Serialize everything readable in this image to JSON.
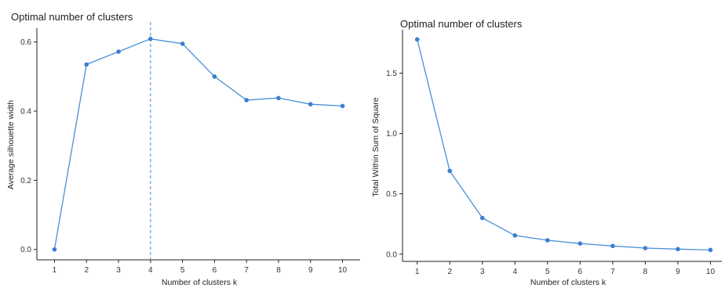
{
  "chart_data": [
    {
      "type": "line",
      "title": "Optimal number of clusters",
      "xlabel": "Number of clusters k",
      "ylabel": "Average silhouette width",
      "x": [
        1,
        2,
        3,
        4,
        5,
        6,
        7,
        8,
        9,
        10
      ],
      "series": [
        {
          "values": [
            0.0,
            0.535,
            0.572,
            0.609,
            0.595,
            0.5,
            0.432,
            0.438,
            0.42,
            0.415
          ]
        }
      ],
      "xticks": [
        "1",
        "2",
        "3",
        "4",
        "5",
        "6",
        "7",
        "8",
        "9",
        "10"
      ],
      "yticks": [
        "0.0",
        "0.2",
        "0.4",
        "0.6"
      ],
      "ylim": [
        -0.03,
        0.64
      ],
      "xlim": [
        0.45,
        10.55
      ],
      "vline_x": 4,
      "grid": false,
      "color": "#3a7fcf"
    },
    {
      "type": "line",
      "title": "Optimal number of clusters",
      "xlabel": "Number of clusters k",
      "ylabel": "Total Within Sum of Square",
      "x": [
        1,
        2,
        3,
        4,
        5,
        6,
        7,
        8,
        9,
        10
      ],
      "series": [
        {
          "values": [
            1.78,
            0.69,
            0.3,
            0.155,
            0.115,
            0.088,
            0.068,
            0.05,
            0.042,
            0.035
          ]
        }
      ],
      "xticks": [
        "1",
        "2",
        "3",
        "4",
        "5",
        "6",
        "7",
        "8",
        "9",
        "10"
      ],
      "yticks": [
        "0.0",
        "0.5",
        "1.0",
        "1.5"
      ],
      "ylim": [
        -0.06,
        1.86
      ],
      "xlim": [
        0.55,
        10.35
      ],
      "grid": false,
      "color": "#3a7fcf"
    }
  ]
}
